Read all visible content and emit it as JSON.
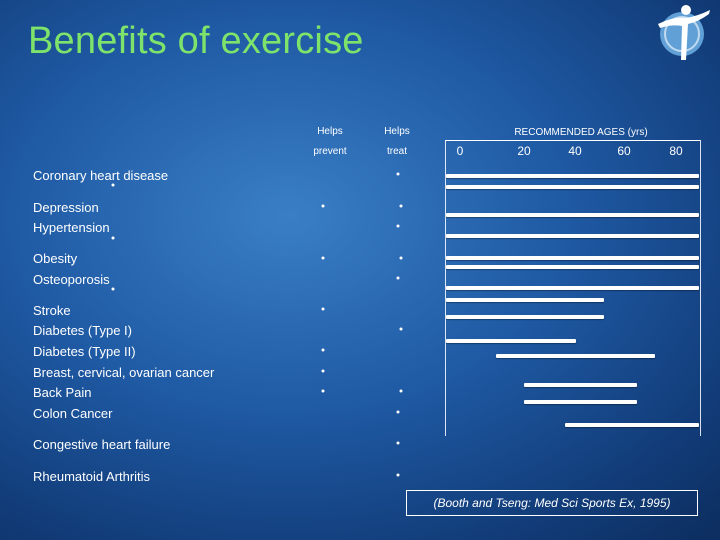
{
  "title": "Benefits of exercise",
  "headers": {
    "prevent_line1": "Helps",
    "prevent_line2": "prevent",
    "treat_line1": "Helps",
    "treat_line2": "treat",
    "ages": "RECOMMENDED AGES (yrs)"
  },
  "age_ticks": [
    "0",
    "20",
    "40",
    "60",
    "80"
  ],
  "conditions": [
    "Coronary heart disease",
    "Depression",
    "Hypertension",
    "Obesity",
    "Osteoporosis",
    "Stroke",
    "Diabetes (Type I)",
    "Diabetes (Type II)",
    "Breast, cervical, ovarian cancer",
    "Back Pain",
    "Colon Cancer",
    "Congestive heart failure",
    "Rheumatoid Arthritis"
  ],
  "citation": "(Booth and Tseng: Med Sci Sports Ex, 1995)",
  "logo_icon": "person-figure-logo-icon",
  "colors": {
    "title": "#7ee36a",
    "background": "#1f5aa4"
  }
}
